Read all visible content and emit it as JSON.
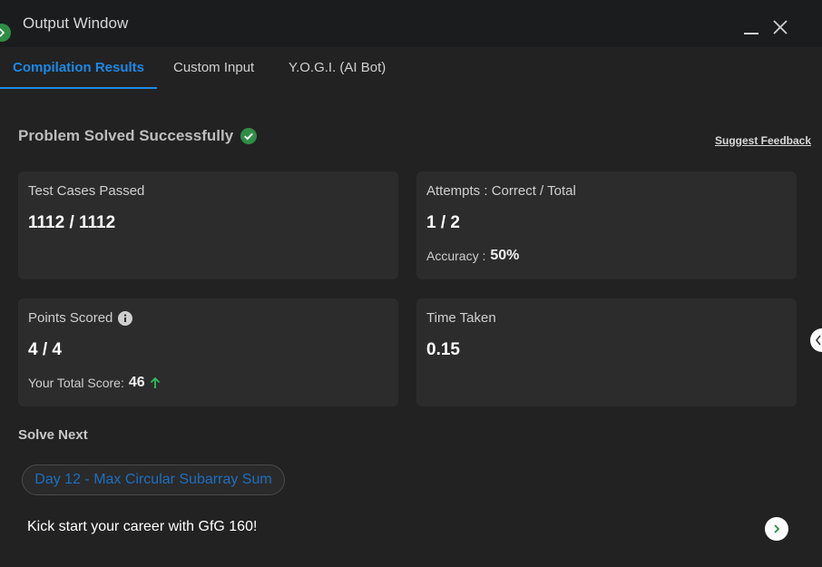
{
  "window": {
    "title": "Output Window",
    "run_icon": "chevron-right-icon",
    "minimize_icon": "minimize-icon",
    "close_icon": "close-icon"
  },
  "tabs": [
    {
      "label": "Compilation Results",
      "active": true
    },
    {
      "label": "Custom Input",
      "active": false
    },
    {
      "label": "Y.O.G.I. (AI Bot)",
      "active": false
    }
  ],
  "result": {
    "heading": "Problem Solved Successfully",
    "feedback_link": "Suggest Feedback"
  },
  "cards": {
    "test_cases": {
      "label": "Test Cases Passed",
      "value": "1112 / 1112"
    },
    "attempts": {
      "label": "Attempts : Correct / Total",
      "value": "1 / 2",
      "sub_label": "Accuracy :",
      "sub_value": "50%"
    },
    "points": {
      "label": "Points Scored",
      "value": "4 / 4",
      "sub_label": "Your Total Score:",
      "sub_value": "46"
    },
    "time": {
      "label": "Time Taken",
      "value": "0.15"
    }
  },
  "solve_next": {
    "heading": "Solve Next",
    "problem": "Day 12 - Max Circular Subarray Sum"
  },
  "promo": {
    "text": "Kick start your career with GfG 160!"
  },
  "colors": {
    "accent": "#1e88e5",
    "success": "#2f8d46",
    "background": "#222222",
    "card": "#2c2c2c"
  }
}
